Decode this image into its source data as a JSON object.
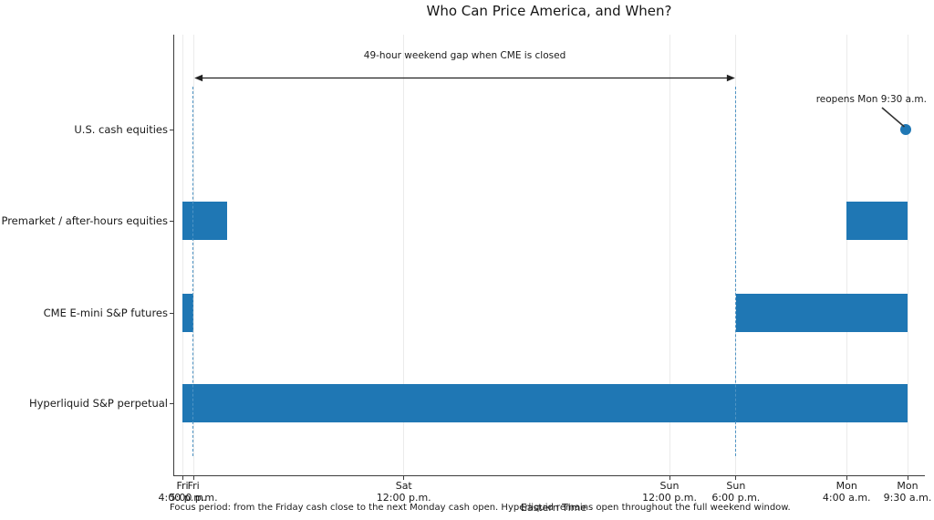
{
  "chart_data": {
    "type": "bar",
    "subtype": "horizontal-timeline-gantt",
    "title": "Who Can Price America, and When?",
    "xlabel": "Eastern Time",
    "x_axis": {
      "unit": "hours since Fri 4:00 p.m. ET",
      "range_hours": [
        0,
        65.5
      ],
      "grid": true,
      "ticks": [
        {
          "hours": 0,
          "day": "Fri",
          "time": "4:00 p.m."
        },
        {
          "hours": 1,
          "day": "Fri",
          "time": "5:00 p.m."
        },
        {
          "hours": 20,
          "day": "Sat",
          "time": "12:00 p.m."
        },
        {
          "hours": 44,
          "day": "Sun",
          "time": "12:00 p.m."
        },
        {
          "hours": 50,
          "day": "Sun",
          "time": "6:00 p.m."
        },
        {
          "hours": 60,
          "day": "Mon",
          "time": "4:00 a.m."
        },
        {
          "hours": 65.5,
          "day": "Mon",
          "time": "9:30 a.m."
        }
      ]
    },
    "rows": [
      {
        "label": "U.S. cash equities",
        "bars": [],
        "marker_hours": 65.5
      },
      {
        "label": "Premarket / after-hours equities",
        "bars": [
          [
            0,
            4
          ],
          [
            60,
            65.5
          ]
        ],
        "marker_hours": null
      },
      {
        "label": "CME E-mini S&P futures",
        "bars": [
          [
            0,
            1
          ],
          [
            50,
            65.5
          ]
        ],
        "marker_hours": null
      },
      {
        "label": "Hyperliquid S&P perpetual",
        "bars": [
          [
            0,
            65.5
          ]
        ],
        "marker_hours": null
      }
    ],
    "dashed_guides_hours": [
      1,
      50
    ],
    "annotations": {
      "gap": {
        "text": "49-hour weekend gap when CME is closed",
        "from_hours": 1,
        "to_hours": 50
      },
      "reopen": {
        "text": "reopens Mon 9:30 a.m.",
        "at_hours": 65.5,
        "row": "U.S. cash equities"
      }
    },
    "footnote": "Focus period: from the Friday cash close to the next Monday cash open. Hyperliquid remains open throughout the full weekend window.",
    "colors": {
      "bar": "#1f77b4",
      "marker": "#1f77b4",
      "dashed_guide": "#4f94c4",
      "grid": "#ebebeb",
      "spine": "#3c3c3c",
      "annotation_line": "#222222",
      "text": "#1a1a1a"
    }
  }
}
